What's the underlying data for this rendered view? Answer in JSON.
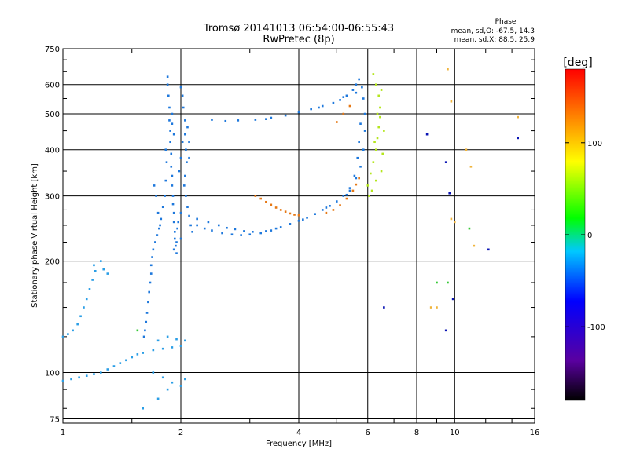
{
  "chart_data": {
    "type": "scatter",
    "title": "Tromsø 20141013 06:54:00-06:55:43",
    "subtitle": "RwPretec (8p)",
    "xlabel": "Frequency [MHz]",
    "ylabel": "Stationary phase Virtual Height [km]",
    "xscale": "log",
    "yscale": "log",
    "xlim": [
      1,
      16
    ],
    "ylim": [
      73,
      750
    ],
    "x_ticks": [
      1,
      2,
      4,
      6,
      8,
      10,
      16
    ],
    "y_ticks": [
      75,
      100,
      200,
      300,
      400,
      500,
      600,
      750
    ],
    "grid": true,
    "phase_info": {
      "header": "Phase",
      "o_mode": "mean, sd,O: -67.5, 14.3",
      "x_mode": "mean, sd,X:  88.5, 25.9"
    },
    "colorbar": {
      "label": "[deg]",
      "range": [
        -180,
        180
      ],
      "ticks": [
        100,
        0,
        -100
      ],
      "colors": [
        "#000000",
        "#5a00a0",
        "#0000ff",
        "#00c8ff",
        "#00ff00",
        "#ffff00",
        "#ff8000",
        "#ff0000"
      ]
    },
    "series": [
      {
        "name": "",
        "color": "#1e78dc",
        "points": [
          [
            1.85,
            630
          ],
          [
            1.85,
            600
          ],
          [
            1.86,
            560
          ],
          [
            1.87,
            520
          ],
          [
            1.87,
            480
          ],
          [
            1.88,
            450
          ],
          [
            1.88,
            420
          ],
          [
            1.89,
            390
          ],
          [
            1.89,
            360
          ],
          [
            1.9,
            340
          ],
          [
            1.9,
            320
          ],
          [
            1.91,
            300
          ],
          [
            1.91,
            285
          ],
          [
            1.92,
            270
          ],
          [
            1.92,
            255
          ],
          [
            1.93,
            240
          ],
          [
            1.93,
            230
          ],
          [
            1.94,
            220
          ],
          [
            1.95,
            210
          ],
          [
            1.9,
            500
          ],
          [
            1.9,
            470
          ],
          [
            1.92,
            440
          ],
          [
            1.83,
            400
          ],
          [
            1.84,
            370
          ],
          [
            1.83,
            330
          ],
          [
            1.82,
            300
          ],
          [
            1.8,
            280
          ],
          [
            1.78,
            260
          ],
          [
            1.76,
            245
          ],
          [
            1.74,
            235
          ],
          [
            1.72,
            225
          ],
          [
            1.7,
            215
          ],
          [
            1.69,
            205
          ],
          [
            1.68,
            195
          ],
          [
            1.68,
            185
          ],
          [
            1.67,
            175
          ],
          [
            1.66,
            165
          ],
          [
            1.65,
            155
          ],
          [
            1.64,
            145
          ],
          [
            1.63,
            137
          ],
          [
            1.62,
            130
          ],
          [
            1.61,
            125
          ],
          [
            1.73,
            300
          ],
          [
            1.71,
            320
          ],
          [
            1.75,
            270
          ],
          [
            1.77,
            250
          ],
          [
            2.0,
            590
          ],
          [
            2.02,
            560
          ],
          [
            2.03,
            520
          ],
          [
            2.05,
            480
          ],
          [
            2.05,
            440
          ],
          [
            2.06,
            400
          ],
          [
            2.07,
            370
          ],
          [
            2.05,
            340
          ],
          [
            2.04,
            320
          ],
          [
            2.06,
            300
          ],
          [
            2.08,
            280
          ],
          [
            2.1,
            265
          ],
          [
            2.12,
            250
          ],
          [
            2.14,
            240
          ],
          [
            2.02,
            420
          ],
          [
            2.0,
            380
          ],
          [
            1.98,
            350
          ],
          [
            2.0,
            270
          ],
          [
            1.97,
            255
          ],
          [
            1.96,
            245
          ],
          [
            2.0,
            230
          ],
          [
            1.95,
            225
          ],
          [
            1.92,
            215
          ],
          [
            2.08,
            460
          ],
          [
            2.1,
            420
          ],
          [
            2.1,
            380
          ],
          [
            2.2,
            250
          ],
          [
            2.3,
            245
          ],
          [
            2.4,
            242
          ],
          [
            2.55,
            238
          ],
          [
            2.7,
            236
          ],
          [
            2.85,
            235
          ],
          [
            3.0,
            236
          ],
          [
            3.2,
            238
          ],
          [
            3.4,
            242
          ],
          [
            3.6,
            247
          ],
          [
            3.8,
            252
          ],
          [
            4.0,
            257
          ],
          [
            4.2,
            262
          ],
          [
            4.4,
            268
          ],
          [
            4.6,
            275
          ],
          [
            4.8,
            282
          ],
          [
            5.0,
            290
          ],
          [
            5.2,
            300
          ],
          [
            5.4,
            315
          ],
          [
            5.6,
            335
          ],
          [
            5.75,
            360
          ],
          [
            5.85,
            400
          ],
          [
            5.9,
            450
          ],
          [
            5.9,
            500
          ],
          [
            5.85,
            550
          ],
          [
            5.8,
            590
          ],
          [
            5.7,
            620
          ],
          [
            5.6,
            600
          ],
          [
            5.5,
            580
          ],
          [
            5.3,
            560
          ],
          [
            5.1,
            545
          ],
          [
            4.9,
            535
          ],
          [
            4.6,
            525
          ],
          [
            4.3,
            515
          ],
          [
            4.0,
            505
          ],
          [
            3.7,
            495
          ],
          [
            3.4,
            488
          ],
          [
            3.1,
            482
          ],
          [
            2.8,
            480
          ],
          [
            2.6,
            478
          ],
          [
            2.4,
            482
          ],
          [
            3.3,
            484
          ],
          [
            4.5,
            520
          ],
          [
            5.2,
            555
          ],
          [
            5.6,
            570
          ],
          [
            5.75,
            470
          ],
          [
            5.7,
            420
          ],
          [
            5.65,
            380
          ],
          [
            5.55,
            340
          ],
          [
            5.4,
            310
          ],
          [
            5.3,
            302
          ],
          [
            2.2,
            260
          ],
          [
            2.35,
            255
          ],
          [
            2.5,
            250
          ],
          [
            2.62,
            246
          ],
          [
            2.75,
            244
          ],
          [
            2.9,
            241
          ],
          [
            3.05,
            240
          ],
          [
            3.3,
            241
          ],
          [
            3.5,
            245
          ],
          [
            4.1,
            259
          ],
          [
            4.7,
            279
          ]
        ]
      },
      {
        "name": "",
        "color": "#2a9ee6",
        "points": [
          [
            1.0,
            125
          ],
          [
            1.03,
            127
          ],
          [
            1.06,
            130
          ],
          [
            1.09,
            135
          ],
          [
            1.11,
            142
          ],
          [
            1.13,
            150
          ],
          [
            1.15,
            158
          ],
          [
            1.17,
            168
          ],
          [
            1.19,
            178
          ],
          [
            1.21,
            188
          ],
          [
            1.0,
            95
          ],
          [
            1.05,
            96
          ],
          [
            1.1,
            97
          ],
          [
            1.15,
            98
          ],
          [
            1.2,
            99
          ],
          [
            1.25,
            100
          ],
          [
            1.3,
            102
          ],
          [
            1.35,
            104
          ],
          [
            1.4,
            106
          ],
          [
            1.45,
            108
          ],
          [
            1.5,
            110
          ],
          [
            1.55,
            112
          ],
          [
            1.6,
            113
          ],
          [
            1.7,
            115
          ],
          [
            1.8,
            116
          ],
          [
            1.9,
            117
          ],
          [
            2.0,
            118
          ],
          [
            2.05,
            122
          ],
          [
            1.75,
            122
          ],
          [
            1.85,
            125
          ],
          [
            1.95,
            123
          ],
          [
            1.7,
            100
          ],
          [
            1.8,
            97
          ],
          [
            1.9,
            94
          ],
          [
            2.0,
            92
          ],
          [
            1.75,
            85
          ],
          [
            1.85,
            90
          ],
          [
            2.05,
            96
          ],
          [
            1.6,
            80
          ],
          [
            1.2,
            195
          ],
          [
            1.25,
            200
          ],
          [
            1.27,
            190
          ],
          [
            1.3,
            185
          ]
        ]
      },
      {
        "name": "",
        "color": "#e67814",
        "points": [
          [
            3.1,
            300
          ],
          [
            3.2,
            295
          ],
          [
            3.3,
            289
          ],
          [
            3.4,
            284
          ],
          [
            3.5,
            279
          ],
          [
            3.6,
            275
          ],
          [
            3.7,
            272
          ],
          [
            3.8,
            269
          ],
          [
            3.9,
            267
          ],
          [
            4.0,
            266
          ],
          [
            4.7,
            270
          ],
          [
            4.9,
            275
          ],
          [
            5.1,
            283
          ],
          [
            5.3,
            295
          ],
          [
            5.5,
            310
          ],
          [
            5.6,
            322
          ],
          [
            5.7,
            335
          ],
          [
            5.0,
            475
          ],
          [
            5.2,
            500
          ],
          [
            5.4,
            525
          ]
        ]
      },
      {
        "name": "",
        "color": "#b4e61e",
        "points": [
          [
            6.0,
            320
          ],
          [
            6.1,
            345
          ],
          [
            6.2,
            370
          ],
          [
            6.3,
            400
          ],
          [
            6.35,
            430
          ],
          [
            6.4,
            460
          ],
          [
            6.45,
            490
          ],
          [
            6.45,
            520
          ],
          [
            6.4,
            560
          ],
          [
            6.3,
            600
          ],
          [
            6.2,
            640
          ],
          [
            6.5,
            580
          ],
          [
            6.6,
            450
          ],
          [
            6.55,
            390
          ],
          [
            6.5,
            350
          ],
          [
            6.3,
            330
          ],
          [
            6.15,
            310
          ],
          [
            6.05,
            300
          ],
          [
            6.25,
            420
          ],
          [
            6.35,
            500
          ]
        ]
      },
      {
        "name": "",
        "color": "#0a14b4",
        "points": [
          [
            8.5,
            440
          ],
          [
            9.5,
            370
          ],
          [
            9.7,
            305
          ],
          [
            9.5,
            130
          ],
          [
            9.9,
            158
          ],
          [
            12.2,
            215
          ],
          [
            14.5,
            430
          ],
          [
            6.6,
            150
          ]
        ]
      },
      {
        "name": "",
        "color": "#f0b43c",
        "points": [
          [
            9.6,
            660
          ],
          [
            9.8,
            540
          ],
          [
            10.7,
            400
          ],
          [
            11.0,
            360
          ],
          [
            9.8,
            260
          ],
          [
            11.2,
            220
          ],
          [
            14.5,
            490
          ],
          [
            9.0,
            150
          ],
          [
            8.7,
            150
          ],
          [
            10.0,
            255
          ]
        ]
      },
      {
        "name": "",
        "color": "#32c832",
        "points": [
          [
            9.0,
            175
          ],
          [
            9.6,
            175
          ],
          [
            1.55,
            130
          ],
          [
            10.9,
            245
          ]
        ]
      }
    ]
  }
}
